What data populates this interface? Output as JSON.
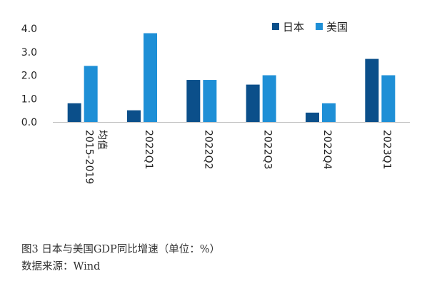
{
  "chart_data": {
    "type": "bar",
    "categories": [
      "2015-2019均值",
      "2022Q1",
      "2022Q2",
      "2022Q3",
      "2022Q4",
      "2023Q1"
    ],
    "series": [
      {
        "name": "日本",
        "color": "#0b4f8a",
        "values": [
          0.8,
          0.5,
          1.8,
          1.6,
          0.4,
          2.7
        ]
      },
      {
        "name": "美国",
        "color": "#1e8fd6",
        "values": [
          2.4,
          3.8,
          1.8,
          2.0,
          0.8,
          2.0
        ]
      }
    ],
    "yticks": [
      "0.0",
      "1.0",
      "2.0",
      "3.0",
      "4.0"
    ],
    "ylim": [
      0,
      4
    ],
    "legend_position": "top-right",
    "grid": false
  },
  "caption": {
    "title": "图3   日本与美国GDP同比增速（单位：%）",
    "source": "数据来源：Wind"
  }
}
